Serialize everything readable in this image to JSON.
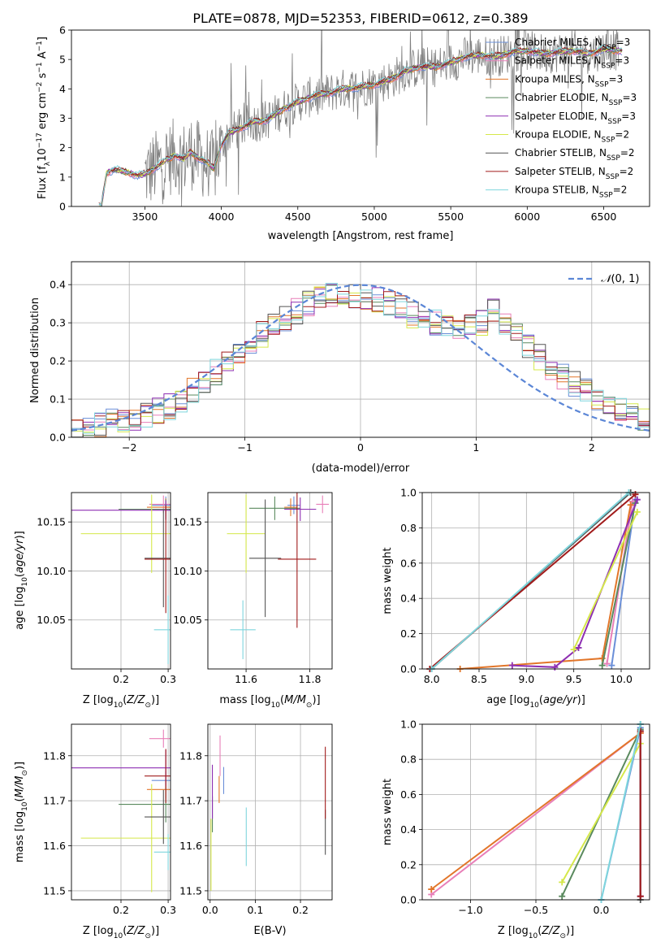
{
  "figure_title": "PLATE=0878, MJD=52353, FIBERID=0612, z=0.389",
  "colors": {
    "Chabrier MILES": "#6a8fd8",
    "Salpeter MILES": "#e87fb8",
    "Kroupa MILES": "#e2762a",
    "Chabrier ELODIE": "#5a8a5e",
    "Salpeter ELODIE": "#8e2fb2",
    "Kroupa ELODIE": "#d5e84a",
    "Chabrier STELIB": "#555555",
    "Salpeter STELIB": "#a11b1b",
    "Kroupa STELIB": "#7fd6dd",
    "data": "#7f7f7f",
    "normal": "#5b86d6"
  },
  "model_order": [
    "Chabrier MILES",
    "Salpeter MILES",
    "Kroupa MILES",
    "Chabrier ELODIE",
    "Salpeter ELODIE",
    "Kroupa ELODIE",
    "Chabrier STELIB",
    "Salpeter STELIB",
    "Kroupa STELIB"
  ],
  "chart_data": [
    {
      "type": "line",
      "id": "spectrum",
      "xlabel": "wavelength [Angstrom, rest frame]",
      "ylabel_prefix": "Flux [f",
      "xlim": [
        3020,
        6800
      ],
      "ylim": [
        0,
        6
      ],
      "xticks": [
        3500,
        4000,
        4500,
        5000,
        5500,
        6000,
        6500
      ],
      "yticks": [
        0,
        1,
        2,
        3,
        4,
        5,
        6
      ],
      "legend": [
        {
          "model": "Chabrier MILES",
          "nssp": "3"
        },
        {
          "model": "Salpeter MILES",
          "nssp": "3"
        },
        {
          "model": "Kroupa MILES",
          "nssp": "3"
        },
        {
          "model": "Chabrier ELODIE",
          "nssp": "3"
        },
        {
          "model": "Salpeter ELODIE",
          "nssp": "3"
        },
        {
          "model": "Kroupa ELODIE",
          "nssp": "2"
        },
        {
          "model": "Chabrier STELIB",
          "nssp": "2"
        },
        {
          "model": "Salpeter STELIB",
          "nssp": "2"
        },
        {
          "model": "Kroupa STELIB",
          "nssp": "2"
        }
      ],
      "model_continuum": {
        "x": [
          3200,
          3215,
          3250,
          3300,
          3350,
          3400,
          3450,
          3500,
          3550,
          3600,
          3650,
          3700,
          3750,
          3800,
          3850,
          3900,
          3950,
          4000,
          4050,
          4100,
          4200,
          4300,
          4400,
          4500,
          4600,
          4700,
          4800,
          4900,
          5000,
          5100,
          5200,
          5300,
          5400,
          5500,
          5600,
          5700,
          5800,
          5900,
          6000,
          6100,
          6200,
          6300,
          6400,
          6500,
          6600
        ],
        "y": [
          0.0,
          0.0,
          1.15,
          1.25,
          1.2,
          1.15,
          1.05,
          1.1,
          1.25,
          1.45,
          1.6,
          1.75,
          1.6,
          1.85,
          1.65,
          1.5,
          1.3,
          2.1,
          2.5,
          2.6,
          2.85,
          2.95,
          3.3,
          3.55,
          3.75,
          3.85,
          4.0,
          4.05,
          4.15,
          4.3,
          4.6,
          4.75,
          4.75,
          4.9,
          5.1,
          5.15,
          5.1,
          5.25,
          5.3,
          5.2,
          5.25,
          5.3,
          5.2,
          5.35,
          5.3
        ]
      },
      "data_range": [
        3500,
        6600
      ]
    },
    {
      "type": "line",
      "id": "residuals",
      "xlabel": "(data-model)/error",
      "ylabel": "Normed distribution",
      "xlim": [
        -2.5,
        2.5
      ],
      "ylim": [
        0,
        0.46
      ],
      "xticks": [
        -2,
        -1,
        0,
        1,
        2
      ],
      "yticks": [
        0.0,
        0.1,
        0.2,
        0.3,
        0.4
      ],
      "legend": "N(0,1)",
      "histogram_bin_width": 0.1,
      "histogram_center": [
        0.02,
        0.03,
        0.035,
        0.04,
        0.045,
        0.05,
        0.06,
        0.07,
        0.08,
        0.1,
        0.12,
        0.15,
        0.17,
        0.2,
        0.22,
        0.25,
        0.27,
        0.29,
        0.31,
        0.33,
        0.35,
        0.36,
        0.37,
        0.38,
        0.37,
        0.37,
        0.36,
        0.35,
        0.34,
        0.32,
        0.31,
        0.3,
        0.29,
        0.28,
        0.29,
        0.3,
        0.33,
        0.3,
        0.27,
        0.24,
        0.21,
        0.18,
        0.16,
        0.14,
        0.12,
        0.1,
        0.08,
        0.07,
        0.06,
        0.05
      ]
    },
    {
      "type": "scatter",
      "id": "age_vs_Z",
      "xlabel": "Z [log",
      "ylabel": "age  [log",
      "xlim": [
        0.095,
        0.305
      ],
      "ylim": [
        10.0,
        10.18
      ],
      "xticks": [
        0.2,
        0.3
      ],
      "yticks": [
        10.05,
        10.1,
        10.15
      ],
      "points": [
        {
          "model": "Chabrier MILES",
          "x": 0.295,
          "xerr": 0.03,
          "y": 10.167,
          "yerr": 0.009
        },
        {
          "model": "Salpeter MILES",
          "x": 0.29,
          "xerr": 0.03,
          "y": 10.168,
          "yerr": 0.009
        },
        {
          "model": "Kroupa MILES",
          "x": 0.295,
          "xerr": 0.04,
          "y": 10.165,
          "yerr": 0.009
        },
        {
          "model": "Chabrier ELODIE",
          "x": 0.295,
          "xerr": 0.1,
          "y": 10.163,
          "yerr": 0.01
        },
        {
          "model": "Salpeter ELODIE",
          "x": 0.295,
          "xerr": 0.2,
          "y": 10.162,
          "yerr": 0.01
        },
        {
          "model": "Kroupa ELODIE",
          "x": 0.265,
          "xerr": 0.15,
          "y": 10.138,
          "yerr": 0.04
        },
        {
          "model": "Chabrier STELIB",
          "x": 0.29,
          "xerr": 0.04,
          "y": 10.113,
          "yerr": 0.05
        },
        {
          "model": "Salpeter STELIB",
          "x": 0.295,
          "xerr": 0.045,
          "y": 10.112,
          "yerr": 0.055
        },
        {
          "model": "Kroupa STELIB",
          "x": 0.3,
          "xerr": 0.03,
          "y": 10.04,
          "yerr": 0.035
        }
      ]
    },
    {
      "type": "scatter",
      "id": "age_vs_mass",
      "xlabel": "mass [log",
      "xlim": [
        11.48,
        11.87
      ],
      "ylim": [
        10.0,
        10.18
      ],
      "xticks": [
        11.6,
        11.8
      ],
      "yticks": [
        10.05,
        10.1,
        10.15
      ],
      "points": [
        {
          "model": "Chabrier MILES",
          "x": 11.75,
          "xerr": 0.02,
          "y": 10.167,
          "yerr": 0.009
        },
        {
          "model": "Salpeter MILES",
          "x": 11.84,
          "xerr": 0.02,
          "y": 10.168,
          "yerr": 0.009
        },
        {
          "model": "Kroupa MILES",
          "x": 11.74,
          "xerr": 0.02,
          "y": 10.165,
          "yerr": 0.009
        },
        {
          "model": "Chabrier ELODIE",
          "x": 11.69,
          "xerr": 0.08,
          "y": 10.164,
          "yerr": 0.012
        },
        {
          "model": "Salpeter ELODIE",
          "x": 11.77,
          "xerr": 0.05,
          "y": 10.163,
          "yerr": 0.012
        },
        {
          "model": "Kroupa ELODIE",
          "x": 11.6,
          "xerr": 0.06,
          "y": 10.138,
          "yerr": 0.04
        },
        {
          "model": "Chabrier STELIB",
          "x": 11.66,
          "xerr": 0.05,
          "y": 10.113,
          "yerr": 0.06
        },
        {
          "model": "Salpeter STELIB",
          "x": 11.76,
          "xerr": 0.06,
          "y": 10.112,
          "yerr": 0.07
        },
        {
          "model": "Kroupa STELIB",
          "x": 11.59,
          "xerr": 0.04,
          "y": 10.04,
          "yerr": 0.03
        }
      ]
    },
    {
      "type": "line",
      "id": "massweight_vs_age",
      "xlabel": "age  [log",
      "ylabel": "mass weight",
      "xlim": [
        7.9,
        10.3
      ],
      "ylim": [
        0,
        1
      ],
      "xticks": [
        8.0,
        8.5,
        9.0,
        9.5,
        10.0
      ],
      "yticks": [
        0.0,
        0.2,
        0.4,
        0.6,
        0.8,
        1.0
      ],
      "series": [
        {
          "model": "Chabrier MILES",
          "x": [
            9.9,
            10.15
          ],
          "y": [
            0.02,
            0.96
          ]
        },
        {
          "model": "Salpeter MILES",
          "x": [
            9.85,
            10.12
          ],
          "y": [
            0.03,
            0.95
          ]
        },
        {
          "model": "Kroupa MILES",
          "x": [
            8.3,
            9.8,
            10.1
          ],
          "y": [
            0.0,
            0.06,
            0.93
          ]
        },
        {
          "model": "Chabrier ELODIE",
          "x": [
            9.8,
            10.15
          ],
          "y": [
            0.02,
            0.94
          ]
        },
        {
          "model": "Salpeter ELODIE",
          "x": [
            8.85,
            9.3,
            9.55,
            10.17
          ],
          "y": [
            0.02,
            0.01,
            0.12,
            0.96
          ]
        },
        {
          "model": "Kroupa ELODIE",
          "x": [
            9.5,
            10.17
          ],
          "y": [
            0.11,
            0.89
          ]
        },
        {
          "model": "Chabrier STELIB",
          "x": [
            8.0,
            10.1
          ],
          "y": [
            0.0,
            1.0
          ]
        },
        {
          "model": "Salpeter STELIB",
          "x": [
            7.98,
            10.15
          ],
          "y": [
            0.0,
            0.99
          ]
        },
        {
          "model": "Kroupa STELIB",
          "x": [
            8.0,
            10.08
          ],
          "y": [
            0.0,
            1.0
          ]
        }
      ]
    },
    {
      "type": "scatter",
      "id": "mass_vs_Z",
      "xlabel": "Z [log",
      "ylabel": "mass [log",
      "xlim": [
        0.095,
        0.305
      ],
      "ylim": [
        11.48,
        11.87
      ],
      "xticks": [
        0.2,
        0.3
      ],
      "yticks": [
        11.5,
        11.6,
        11.7,
        11.8
      ],
      "points": [
        {
          "model": "Chabrier MILES",
          "x": 0.295,
          "xerr": 0.03,
          "y": 11.745,
          "yerr": 0.02
        },
        {
          "model": "Salpeter MILES",
          "x": 0.29,
          "xerr": 0.03,
          "y": 11.838,
          "yerr": 0.02
        },
        {
          "model": "Kroupa MILES",
          "x": 0.295,
          "xerr": 0.04,
          "y": 11.725,
          "yerr": 0.02
        },
        {
          "model": "Chabrier ELODIE",
          "x": 0.295,
          "xerr": 0.1,
          "y": 11.692,
          "yerr": 0.04
        },
        {
          "model": "Salpeter ELODIE",
          "x": 0.295,
          "xerr": 0.2,
          "y": 11.773,
          "yerr": 0.04
        },
        {
          "model": "Kroupa ELODIE",
          "x": 0.265,
          "xerr": 0.15,
          "y": 11.617,
          "yerr": 0.12
        },
        {
          "model": "Chabrier STELIB",
          "x": 0.29,
          "xerr": 0.04,
          "y": 11.664,
          "yerr": 0.06
        },
        {
          "model": "Salpeter STELIB",
          "x": 0.295,
          "xerr": 0.045,
          "y": 11.755,
          "yerr": 0.06
        },
        {
          "model": "Kroupa STELIB",
          "x": 0.3,
          "xerr": 0.03,
          "y": 11.586,
          "yerr": 0.04
        }
      ]
    },
    {
      "type": "scatter",
      "id": "mass_vs_EBV",
      "xlabel": "E(B-V)",
      "xlim": [
        -0.005,
        0.27
      ],
      "ylim": [
        11.48,
        11.87
      ],
      "xticks": [
        0.0,
        0.1,
        0.2
      ],
      "yticks": [
        11.5,
        11.6,
        11.7,
        11.8
      ],
      "points": [
        {
          "model": "Chabrier MILES",
          "x": 0.03,
          "y": 11.745,
          "yerr": 0.03
        },
        {
          "model": "Salpeter MILES",
          "x": 0.022,
          "y": 11.8,
          "yerr": 0.045
        },
        {
          "model": "Kroupa MILES",
          "x": 0.02,
          "y": 11.725,
          "yerr": 0.03
        },
        {
          "model": "Chabrier ELODIE",
          "x": 0.005,
          "y": 11.67,
          "yerr": 0.04
        },
        {
          "model": "Salpeter ELODIE",
          "x": 0.005,
          "y": 11.72,
          "yerr": 0.06
        },
        {
          "model": "Kroupa ELODIE",
          "x": 0.002,
          "y": 11.58,
          "yerr": 0.08
        },
        {
          "model": "Chabrier STELIB",
          "x": 0.255,
          "y": 11.63,
          "yerr": 0.05
        },
        {
          "model": "Salpeter STELIB",
          "x": 0.255,
          "y": 11.74,
          "yerr": 0.08
        },
        {
          "model": "Kroupa STELIB",
          "x": 0.08,
          "y": 11.62,
          "yerr": 0.065
        }
      ]
    },
    {
      "type": "line",
      "id": "massweight_vs_Z",
      "xlabel": "Z [log",
      "ylabel": "mass weight",
      "xlim": [
        -1.37,
        0.37
      ],
      "ylim": [
        0,
        1
      ],
      "xticks": [
        -1.0,
        -0.5,
        0.0
      ],
      "yticks": [
        0.0,
        0.2,
        0.4,
        0.6,
        0.8,
        1.0
      ],
      "series": [
        {
          "model": "Chabrier MILES",
          "x": [
            0.0,
            0.3
          ],
          "y": [
            0.0,
            0.98
          ]
        },
        {
          "model": "Salpeter MILES",
          "x": [
            -1.3,
            0.3
          ],
          "y": [
            0.03,
            0.95
          ]
        },
        {
          "model": "Kroupa MILES",
          "x": [
            -1.3,
            0.3
          ],
          "y": [
            0.06,
            0.95
          ]
        },
        {
          "model": "Chabrier ELODIE",
          "x": [
            -0.3,
            0.3
          ],
          "y": [
            0.02,
            0.97
          ]
        },
        {
          "model": "Salpeter ELODIE",
          "x": [
            0.3,
            0.3
          ],
          "y": [
            0.02,
            0.96
          ]
        },
        {
          "model": "Kroupa ELODIE",
          "x": [
            -0.3,
            0.3
          ],
          "y": [
            0.1,
            0.89
          ]
        },
        {
          "model": "Chabrier STELIB",
          "x": [
            0.3,
            0.3
          ],
          "y": [
            0.0,
            1.0
          ]
        },
        {
          "model": "Salpeter STELIB",
          "x": [
            0.3,
            0.3
          ],
          "y": [
            0.02,
            0.96
          ]
        },
        {
          "model": "Kroupa STELIB",
          "x": [
            0.0,
            0.3
          ],
          "y": [
            0.0,
            1.0
          ]
        }
      ]
    }
  ]
}
